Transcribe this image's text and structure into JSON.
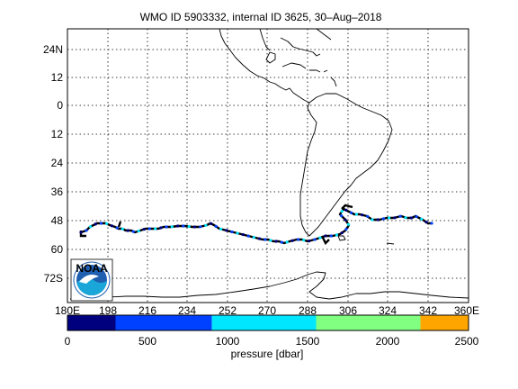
{
  "title": "WMO ID 5903332, internal ID 3625, 30–Aug–2018",
  "map": {
    "lon_ticks": [
      "180E",
      "198",
      "216",
      "234",
      "252",
      "270",
      "288",
      "306",
      "324",
      "342",
      "360E"
    ],
    "lat_ticks": [
      "24N",
      "12",
      "0",
      "12",
      "24",
      "36",
      "48",
      "60",
      "72S"
    ],
    "lon_range": [
      180,
      360
    ],
    "lat_range": [
      30,
      -78
    ],
    "grid": true,
    "coastline_color": "#000000",
    "logo_text": "NOAA",
    "logo_colors": {
      "sky": "#1f5fb0",
      "sea": "#1aa6d8",
      "bird": "#ffffff"
    }
  },
  "colorbar": {
    "label": "pressure [dbar]",
    "ticks": [
      "0",
      "500",
      "1000",
      "1500",
      "2000",
      "2500"
    ],
    "range": [
      0,
      2500
    ],
    "bands": [
      {
        "from": 0,
        "to": 300,
        "color": "#00007f"
      },
      {
        "from": 300,
        "to": 900,
        "color": "#0040ff"
      },
      {
        "from": 900,
        "to": 1550,
        "color": "#00e6ff"
      },
      {
        "from": 1550,
        "to": 2200,
        "color": "#80ff80"
      },
      {
        "from": 2200,
        "to": 2500,
        "color": "#ffa500"
      }
    ]
  },
  "trajectory": {
    "line_color": "#000000",
    "point_colors": [
      "#00007f",
      "#0040ff",
      "#00e6ff"
    ]
  }
}
